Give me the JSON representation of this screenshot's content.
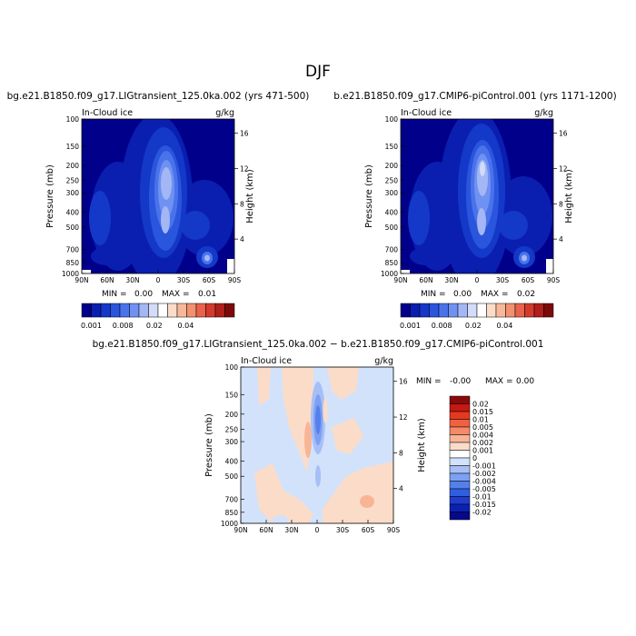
{
  "figure": {
    "title": "DJF",
    "bottom_title": "bg.e21.B1850.f09_g17.LIGtransient_125.0ka.002 − b.e21.B1850.f09_g17.CMIP6-piControl.001"
  },
  "colors": {
    "abs_scale": [
      "#00008b",
      "#0a1fb0",
      "#1438c8",
      "#2a55dd",
      "#4a72ea",
      "#6f91f2",
      "#a3b7f5",
      "#d3dcf8",
      "#ffffff",
      "#fbdcc8",
      "#f7b89a",
      "#f2906f",
      "#e9634a",
      "#d23b2c",
      "#b01f1a",
      "#7d0a0a"
    ],
    "diff_scale": [
      "#08088a",
      "#0c20b2",
      "#1f3ccc",
      "#2f5fe0",
      "#5580ec",
      "#7ea0f2",
      "#a7bff6",
      "#d2e2fb",
      "#ffffff",
      "#fbdcc8",
      "#f8b596",
      "#f48a68",
      "#ef6140",
      "#e4391f",
      "#c41a12",
      "#8a0a0a"
    ]
  },
  "chart_data": [
    {
      "type": "heatmap",
      "id": "left",
      "title": "bg.e21.B1850.f09_g17.LIGtransient_125.0ka.002 (yrs 471-500)",
      "corner_left": "In-Cloud ice",
      "corner_right": "g/kg",
      "ylabel": "Pressure (mb)",
      "ylabel_right": "Height (km)",
      "x_ticks": [
        "90N",
        "60N",
        "30N",
        "0",
        "30S",
        "60S",
        "90S"
      ],
      "y_ticks": [
        100,
        150,
        200,
        250,
        300,
        400,
        500,
        700,
        850,
        1000
      ],
      "height_ticks": [
        16,
        12,
        8,
        4
      ],
      "min_text": "MIN =",
      "min_value": "0.00",
      "max_text": "MAX =",
      "max_value": "0.01",
      "colorbar_labels": [
        "0.001",
        "0.008",
        "0.02",
        "0.04"
      ],
      "xlim": [
        90,
        -90
      ],
      "ylim": [
        1000,
        100
      ]
    },
    {
      "type": "heatmap",
      "id": "right",
      "title": "b.e21.B1850.f09_g17.CMIP6-piControl.001 (yrs 1171-1200)",
      "corner_left": "In-Cloud ice",
      "corner_right": "g/kg",
      "ylabel": "Pressure (mb)",
      "ylabel_right": "Height (km)",
      "x_ticks": [
        "90N",
        "60N",
        "30N",
        "0",
        "30S",
        "60S",
        "90S"
      ],
      "y_ticks": [
        100,
        150,
        200,
        250,
        300,
        400,
        500,
        700,
        850,
        1000
      ],
      "height_ticks": [
        16,
        12,
        8,
        4
      ],
      "min_text": "MIN =",
      "min_value": "0.00",
      "max_text": "MAX =",
      "max_value": "0.02",
      "colorbar_labels": [
        "0.001",
        "0.008",
        "0.02",
        "0.04"
      ],
      "xlim": [
        90,
        -90
      ],
      "ylim": [
        1000,
        100
      ]
    },
    {
      "type": "heatmap",
      "id": "diff",
      "corner_left": "In-Cloud ice",
      "corner_right": "g/kg",
      "ylabel": "Pressure (mb)",
      "ylabel_right": "Height (km)",
      "x_ticks": [
        "90N",
        "60N",
        "30N",
        "0",
        "30S",
        "60S",
        "90S"
      ],
      "y_ticks": [
        100,
        150,
        200,
        250,
        300,
        400,
        500,
        700,
        850,
        1000
      ],
      "height_ticks": [
        16,
        12,
        8,
        4
      ],
      "min_text": "MIN =",
      "min_value": "-0.00",
      "max_text": "MAX =",
      "max_value": "0.00",
      "colorbar_labels": [
        "0.02",
        "0.015",
        "0.01",
        "0.005",
        "0.004",
        "0.002",
        "0.001",
        "0",
        "-0.001",
        "-0.002",
        "-0.004",
        "-0.005",
        "-0.01",
        "-0.015",
        "-0.02"
      ],
      "xlim": [
        90,
        -90
      ],
      "ylim": [
        1000,
        100
      ]
    }
  ]
}
